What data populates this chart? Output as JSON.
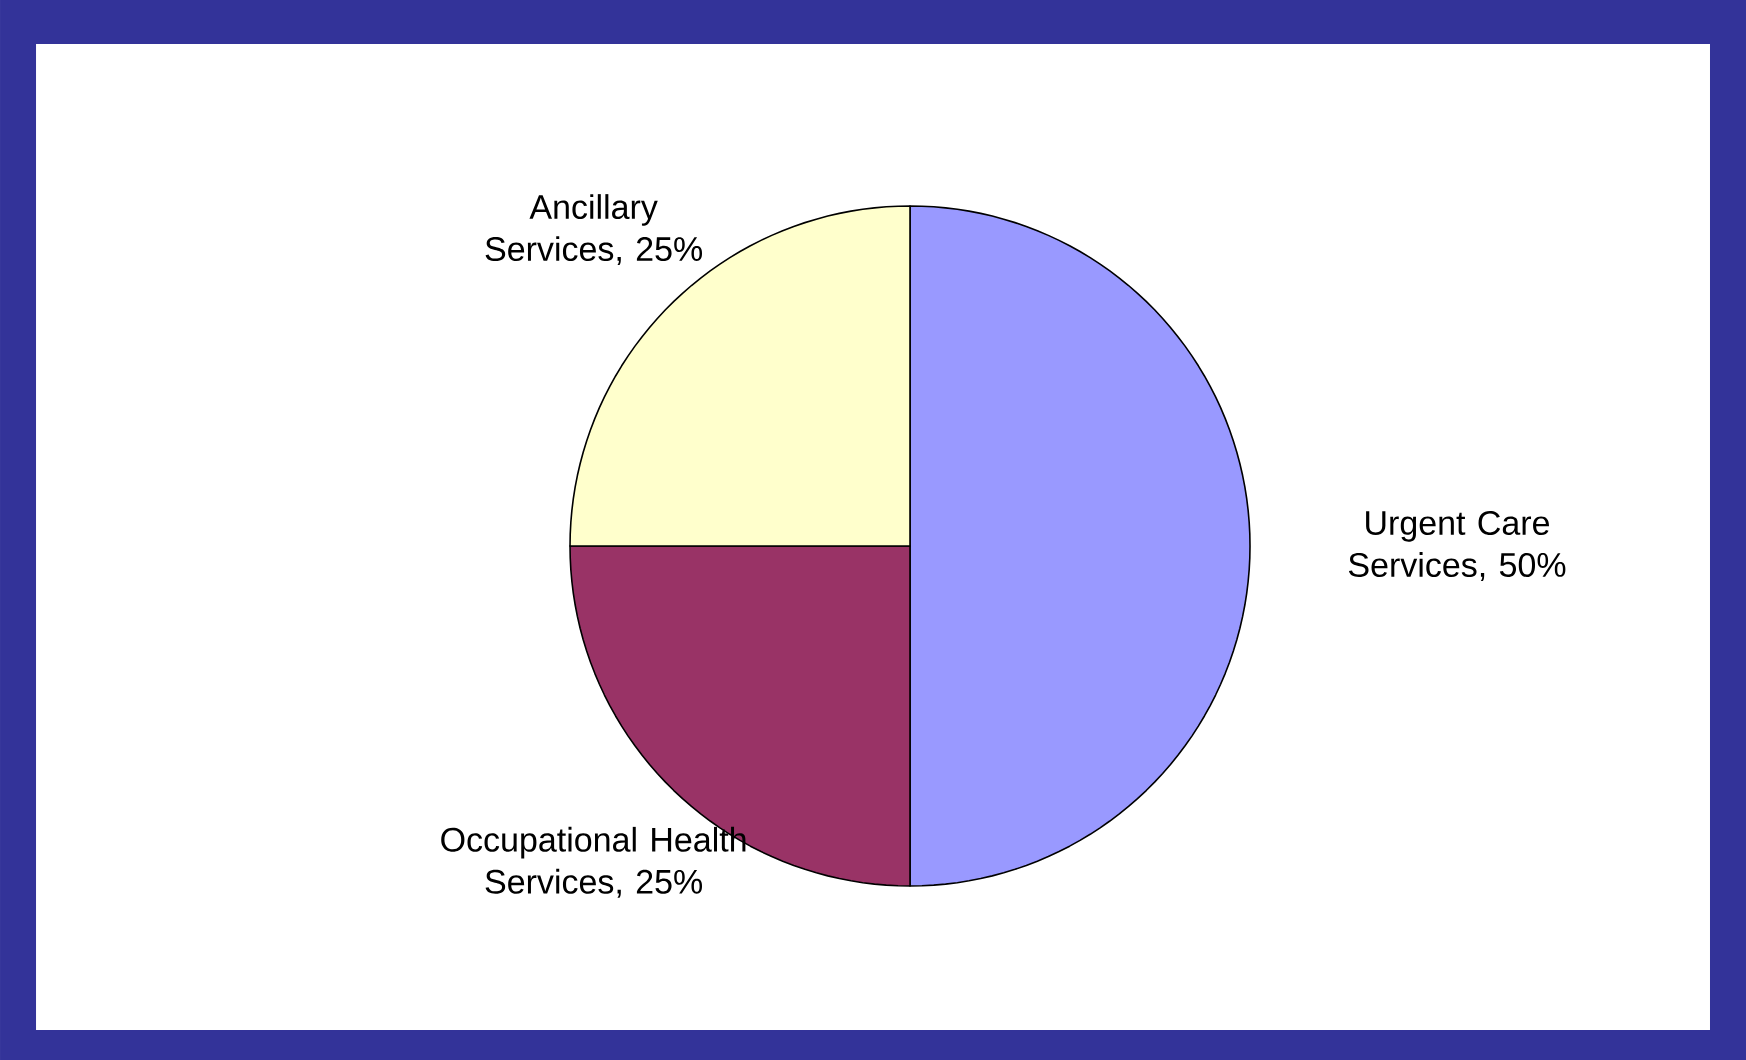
{
  "chart_data": {
    "type": "pie",
    "categories": [
      "Urgent Care Services",
      "Occupational Health Services",
      "Ancillary Services"
    ],
    "values": [
      50,
      25,
      25
    ],
    "value_labels": [
      ", 50%",
      ", 25%",
      ", 25%"
    ],
    "colors": [
      "#9999ff",
      "#993366",
      "#ffffcc"
    ]
  }
}
